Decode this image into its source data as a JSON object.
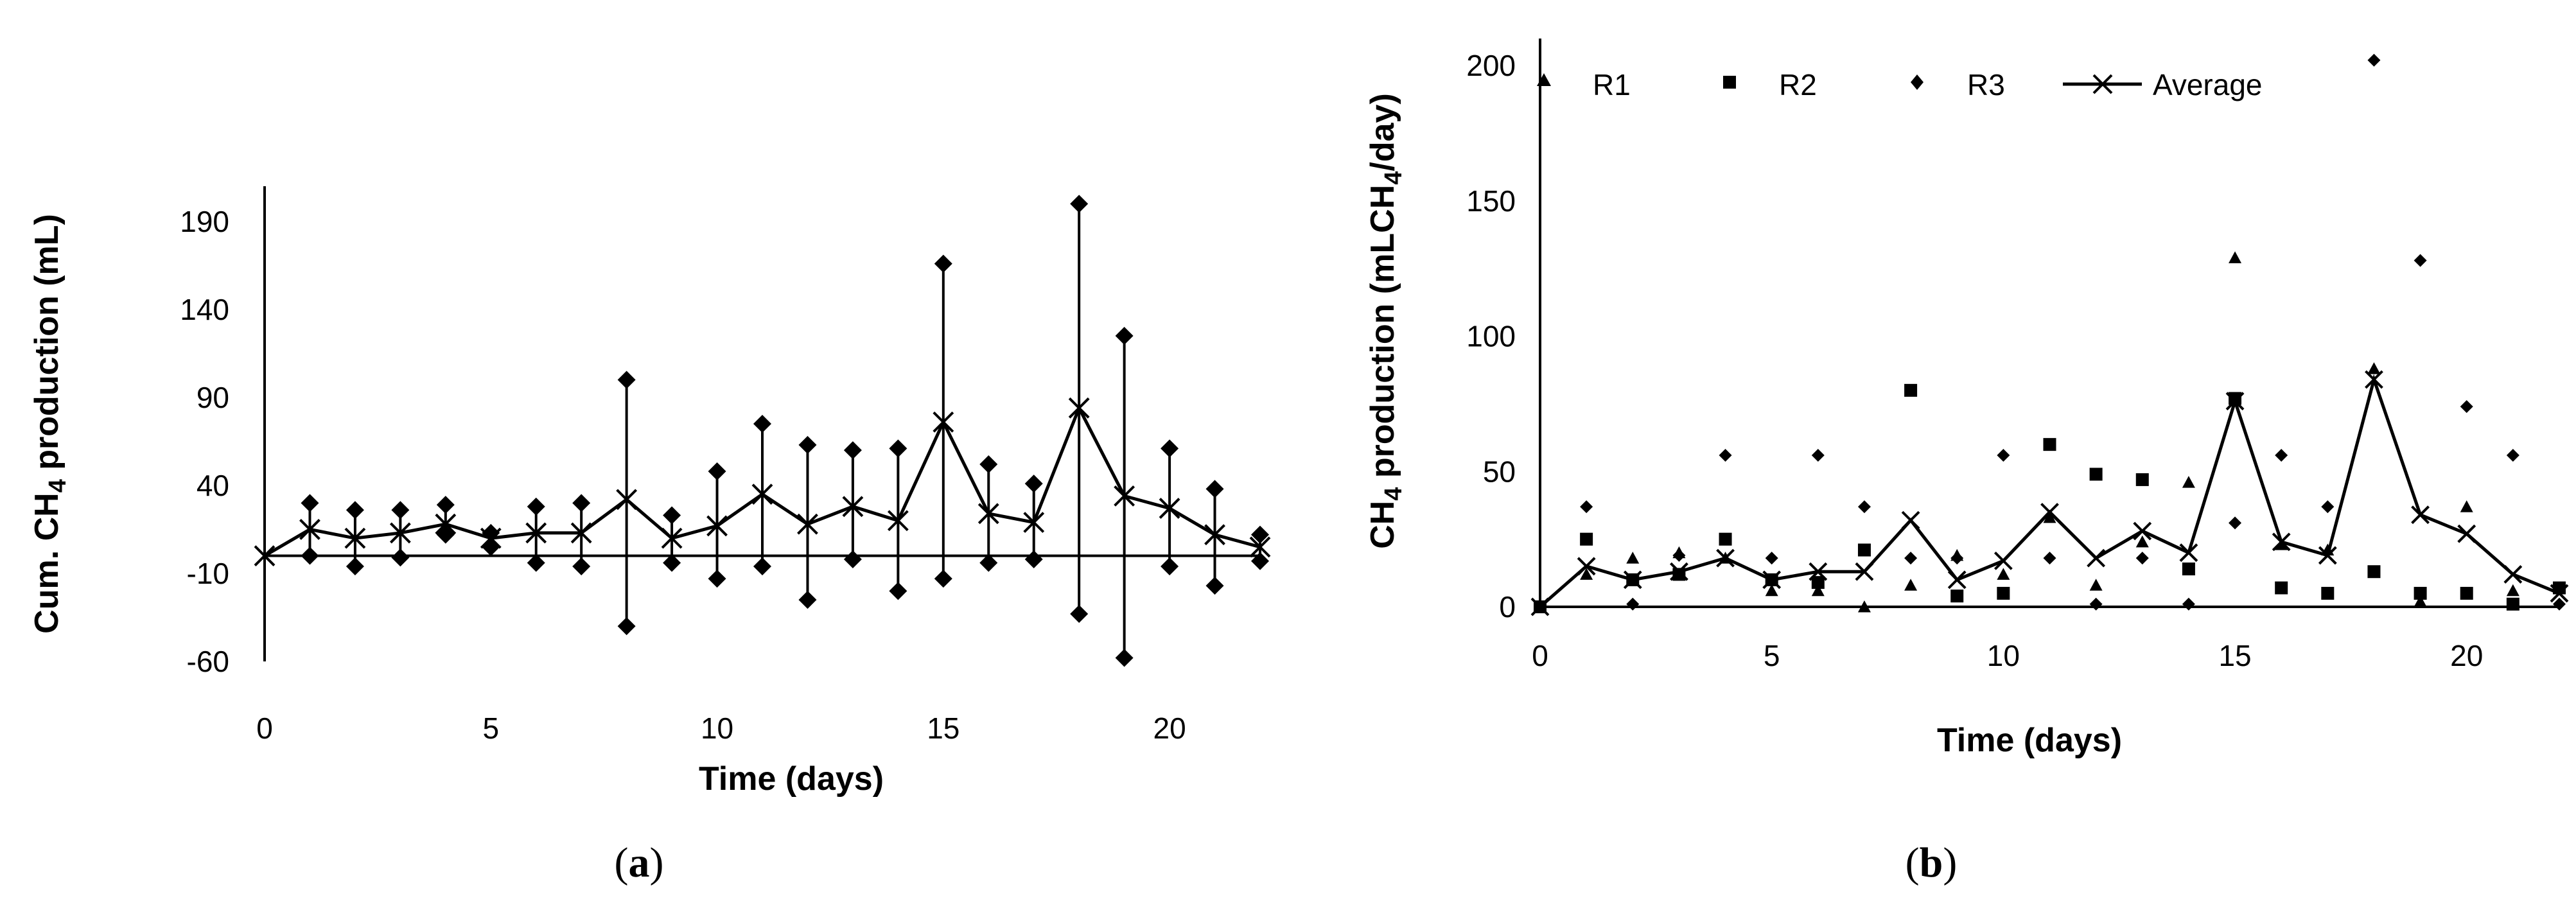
{
  "chart_data": [
    {
      "type": "line",
      "panel": "a",
      "caption": "(a)",
      "caption_letter": "a",
      "xlabel": "Time (days)",
      "ylabel": "Cum. CH4 production (mL)",
      "ylabel_parts": {
        "pre": "Cum. CH",
        "sub": "4",
        "post": " production (mL)"
      },
      "xlim": [
        0,
        22
      ],
      "ylim": [
        -60,
        210
      ],
      "xticks": [
        0,
        5,
        10,
        15,
        20
      ],
      "yticks": [
        -60,
        -10,
        40,
        90,
        140,
        190
      ],
      "series": [
        {
          "name": "Average",
          "x": [
            0,
            1,
            2,
            3,
            4,
            5,
            6,
            7,
            8,
            9,
            10,
            11,
            12,
            13,
            14,
            15,
            16,
            17,
            18,
            19,
            20,
            21,
            22
          ],
          "values": [
            0,
            15,
            10,
            13,
            18,
            10,
            13,
            13,
            32,
            10,
            17,
            35,
            18,
            28,
            20,
            76,
            24,
            19,
            84,
            34,
            27,
            12,
            5
          ],
          "err_high": [
            0,
            30,
            26,
            26,
            29,
            13,
            28,
            30,
            100,
            23,
            48,
            75,
            63,
            60,
            61,
            166,
            52,
            41,
            200,
            125,
            61,
            38,
            12
          ],
          "err_low": [
            0,
            0,
            -6,
            -1,
            12,
            5,
            -4,
            -6,
            -40,
            -4,
            -13,
            -6,
            -25,
            -2,
            -20,
            -13,
            -4,
            -2,
            -33,
            -58,
            -6,
            -17,
            -3
          ]
        }
      ]
    },
    {
      "type": "scatter",
      "panel": "b",
      "caption": "(b)",
      "caption_letter": "b",
      "xlabel": "Time (days)",
      "ylabel": "CH4 production (mLCH4/day)",
      "ylabel_parts": {
        "pre": "CH",
        "sub1": "4",
        "mid": " production (mLCH",
        "sub2": "4",
        "post": "/day)"
      },
      "xlim": [
        0,
        22
      ],
      "ylim": [
        0,
        210
      ],
      "xticks": [
        0,
        5,
        10,
        15,
        20
      ],
      "yticks": [
        0,
        50,
        100,
        150,
        200
      ],
      "legend_position": "top",
      "x": [
        0,
        1,
        2,
        3,
        4,
        5,
        6,
        7,
        8,
        9,
        10,
        11,
        12,
        13,
        14,
        15,
        16,
        17,
        18,
        19,
        20,
        21,
        22
      ],
      "series": [
        {
          "name": "R1",
          "marker": "triangle",
          "values": [
            0,
            12,
            18,
            20,
            18,
            6,
            6,
            0,
            8,
            19,
            12,
            33,
            8,
            24,
            46,
            129,
            23,
            21,
            88,
            2,
            37,
            6,
            7
          ]
        },
        {
          "name": "R2",
          "marker": "square",
          "values": [
            0,
            25,
            10,
            12,
            25,
            10,
            9,
            21,
            80,
            4,
            5,
            60,
            49,
            47,
            14,
            77,
            7,
            5,
            13,
            5,
            5,
            1,
            7
          ]
        },
        {
          "name": "R3",
          "marker": "diamond",
          "values": [
            0,
            37,
            1,
            19,
            56,
            18,
            56,
            37,
            18,
            18,
            56,
            18,
            1,
            18,
            1,
            31,
            56,
            37,
            202,
            128,
            74,
            56,
            1
          ]
        },
        {
          "name": "Average",
          "marker": "x-line",
          "values": [
            0,
            15,
            10,
            13,
            18,
            10,
            13,
            13,
            32,
            10,
            17,
            35,
            18,
            28,
            20,
            76,
            24,
            19,
            84,
            34,
            27,
            12,
            5
          ]
        }
      ]
    }
  ]
}
